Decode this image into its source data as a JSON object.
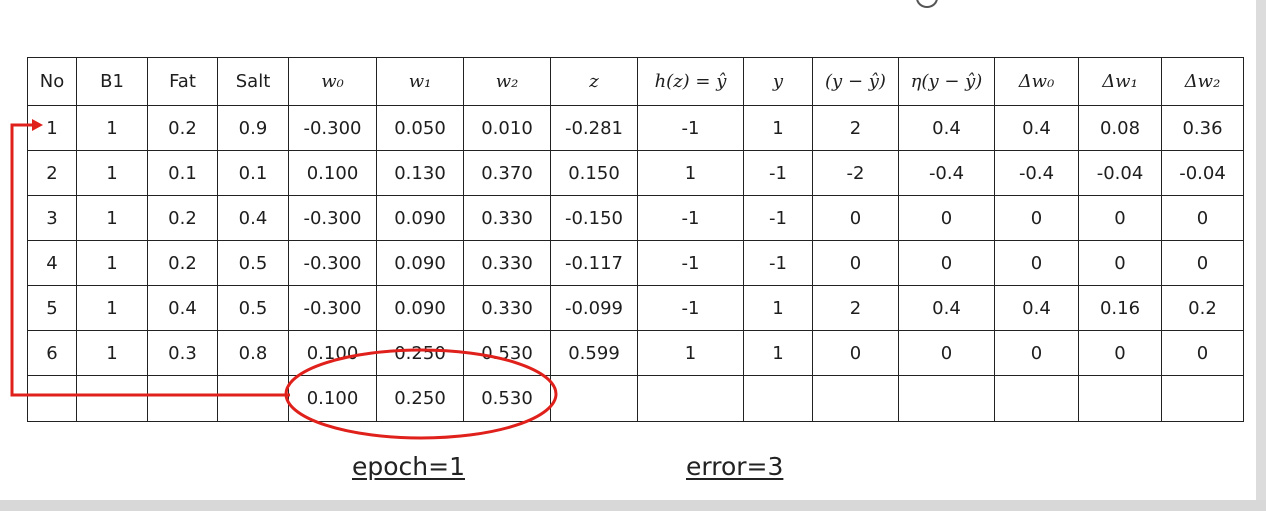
{
  "columns": [
    {
      "kind": "text",
      "label": "No"
    },
    {
      "kind": "text",
      "label": "B1"
    },
    {
      "kind": "text",
      "label": "Fat"
    },
    {
      "kind": "text",
      "label": "Salt"
    },
    {
      "kind": "math",
      "label": "w₀"
    },
    {
      "kind": "math",
      "label": "w₁"
    },
    {
      "kind": "math",
      "label": "w₂"
    },
    {
      "kind": "math",
      "label": "z"
    },
    {
      "kind": "math",
      "label": "h(z) = ŷ"
    },
    {
      "kind": "math",
      "label": "y"
    },
    {
      "kind": "math",
      "label": "(y − ŷ)"
    },
    {
      "kind": "math",
      "label": "η(y − ŷ)"
    },
    {
      "kind": "math",
      "label": "Δw₀"
    },
    {
      "kind": "math",
      "label": "Δw₁"
    },
    {
      "kind": "math",
      "label": "Δw₂"
    }
  ],
  "rows": [
    [
      "1",
      "1",
      "0.2",
      "0.9",
      "-0.300",
      "0.050",
      "0.010",
      "-0.281",
      "-1",
      "1",
      "2",
      "0.4",
      "0.4",
      "0.08",
      "0.36"
    ],
    [
      "2",
      "1",
      "0.1",
      "0.1",
      "0.100",
      "0.130",
      "0.370",
      "0.150",
      "1",
      "-1",
      "-2",
      "-0.4",
      "-0.4",
      "-0.04",
      "-0.04"
    ],
    [
      "3",
      "1",
      "0.2",
      "0.4",
      "-0.300",
      "0.090",
      "0.330",
      "-0.150",
      "-1",
      "-1",
      "0",
      "0",
      "0",
      "0",
      "0"
    ],
    [
      "4",
      "1",
      "0.2",
      "0.5",
      "-0.300",
      "0.090",
      "0.330",
      "-0.117",
      "-1",
      "-1",
      "0",
      "0",
      "0",
      "0",
      "0"
    ],
    [
      "5",
      "1",
      "0.4",
      "0.5",
      "-0.300",
      "0.090",
      "0.330",
      "-0.099",
      "-1",
      "1",
      "2",
      "0.4",
      "0.4",
      "0.16",
      "0.2"
    ],
    [
      "6",
      "1",
      "0.3",
      "0.8",
      "0.100",
      "0.250",
      "0.530",
      "0.599",
      "1",
      "1",
      "0",
      "0",
      "0",
      "0",
      "0"
    ],
    [
      "",
      "",
      "",
      "",
      "0.100",
      "0.250",
      "0.530",
      "",
      "",
      "",
      "",
      "",
      "",
      "",
      ""
    ]
  ],
  "captions": {
    "epoch": "epoch=1",
    "error": "error=3"
  },
  "annotation_color": "#e0201b"
}
